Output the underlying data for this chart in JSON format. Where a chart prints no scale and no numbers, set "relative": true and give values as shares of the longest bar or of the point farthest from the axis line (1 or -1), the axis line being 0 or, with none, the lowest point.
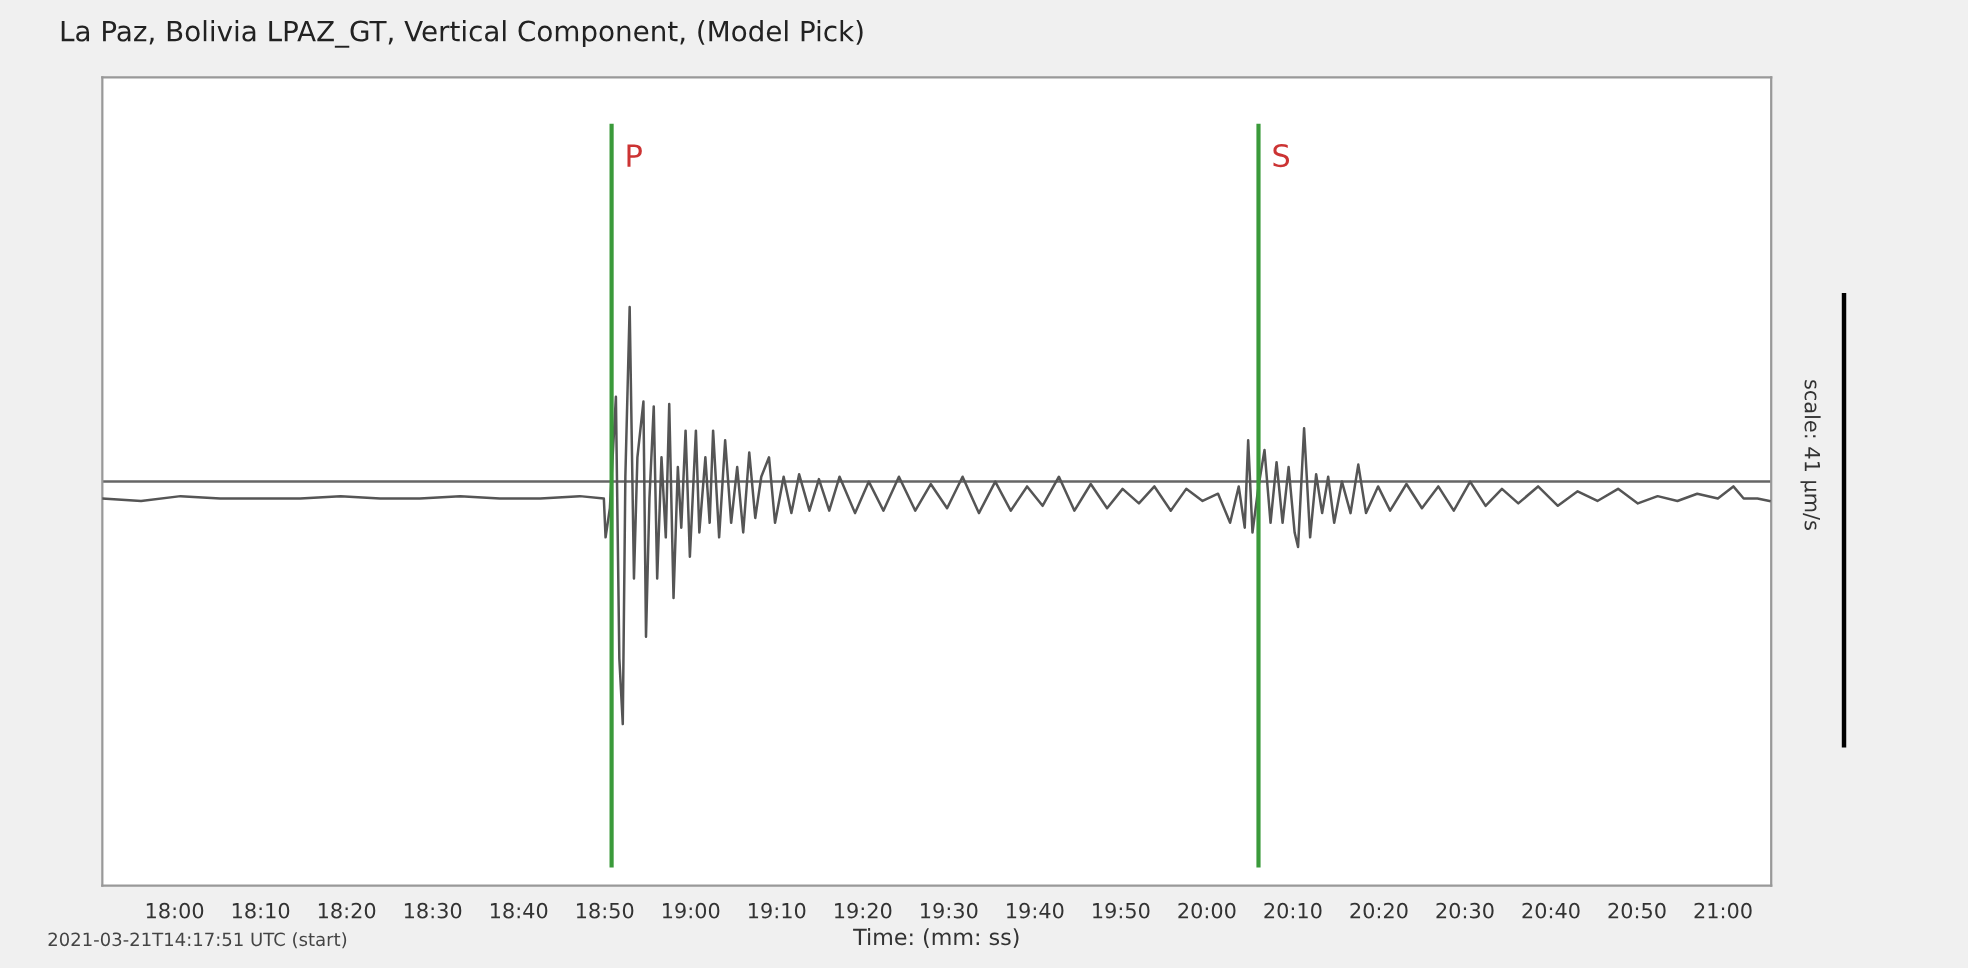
{
  "chart_data": {
    "type": "line",
    "title": "La Paz, Bolivia LPAZ_GT, Vertical Component, (Model Pick)",
    "xlabel": "Time: (mm: ss)",
    "relative": true,
    "tick_labels": "x",
    "grid": false,
    "marker": "none",
    "line_style": "solid",
    "annotations": [
      "2021-03-21T14:17:51 UTC (start)",
      "scale: 41 µm/s"
    ],
    "xlim": [
      1071.6,
      1265.6
    ],
    "xticks": [
      {
        "value": 1080,
        "label": "18:00"
      },
      {
        "value": 1090,
        "label": "18:10"
      },
      {
        "value": 1100,
        "label": "18:20"
      },
      {
        "value": 1110,
        "label": "18:30"
      },
      {
        "value": 1120,
        "label": "18:40"
      },
      {
        "value": 1130,
        "label": "18:50"
      },
      {
        "value": 1140,
        "label": "19:00"
      },
      {
        "value": 1150,
        "label": "19:10"
      },
      {
        "value": 1160,
        "label": "19:20"
      },
      {
        "value": 1170,
        "label": "19:30"
      },
      {
        "value": 1180,
        "label": "19:40"
      },
      {
        "value": 1190,
        "label": "19:50"
      },
      {
        "value": 1200,
        "label": "20:00"
      },
      {
        "value": 1210,
        "label": "20:10"
      },
      {
        "value": 1220,
        "label": "20:20"
      },
      {
        "value": 1230,
        "label": "20:30"
      },
      {
        "value": 1240,
        "label": "20:40"
      },
      {
        "value": 1250,
        "label": "20:50"
      },
      {
        "value": 1260,
        "label": "21:00"
      }
    ],
    "ref_lines": [
      {
        "axis": "y",
        "value": 0,
        "color": "#666666"
      },
      {
        "axis": "x",
        "value": 1130.8,
        "label": "P",
        "color": "#3a9a3a"
      },
      {
        "axis": "x",
        "value": 1206.0,
        "label": "S",
        "color": "#3a9a3a"
      }
    ],
    "series": [
      {
        "color": "#555555",
        "x": [
          1071.6,
          1076.1,
          1080.7,
          1085.3,
          1090.0,
          1094.6,
          1099.3,
          1103.9,
          1108.5,
          1113.2,
          1117.8,
          1122.5,
          1127.1,
          1129.9,
          1130.1,
          1130.6,
          1131.3,
          1131.7,
          1132.1,
          1132.4,
          1132.9,
          1133.4,
          1133.8,
          1134.5,
          1134.8,
          1135.2,
          1135.7,
          1136.1,
          1136.6,
          1137.1,
          1137.5,
          1138.0,
          1138.5,
          1138.9,
          1139.4,
          1139.9,
          1140.6,
          1141.0,
          1141.7,
          1142.2,
          1142.6,
          1143.3,
          1144.0,
          1144.7,
          1145.4,
          1146.1,
          1146.8,
          1147.5,
          1148.2,
          1149.1,
          1149.8,
          1150.8,
          1151.7,
          1152.6,
          1153.8,
          1154.9,
          1156.1,
          1157.3,
          1159.1,
          1160.7,
          1162.4,
          1164.2,
          1166.1,
          1167.9,
          1169.8,
          1171.6,
          1173.5,
          1175.4,
          1177.2,
          1179.1,
          1180.9,
          1182.8,
          1184.6,
          1186.5,
          1188.4,
          1190.2,
          1192.1,
          1193.9,
          1195.8,
          1197.6,
          1199.5,
          1201.3,
          1202.7,
          1203.7,
          1204.4,
          1204.8,
          1205.3,
          1206.0,
          1206.7,
          1207.4,
          1208.1,
          1208.8,
          1209.5,
          1210.2,
          1210.6,
          1211.3,
          1212.0,
          1212.7,
          1213.4,
          1214.1,
          1214.8,
          1215.7,
          1216.7,
          1217.6,
          1218.5,
          1219.9,
          1221.3,
          1223.2,
          1225.0,
          1226.9,
          1228.7,
          1230.6,
          1232.4,
          1234.3,
          1236.2,
          1238.5,
          1240.8,
          1243.1,
          1245.4,
          1247.8,
          1250.1,
          1252.4,
          1254.7,
          1257.0,
          1259.4,
          1261.2,
          1262.4,
          1264.0,
          1265.4
        ],
        "values": [
          -0.07,
          -0.08,
          -0.06,
          -0.07,
          -0.07,
          -0.07,
          -0.06,
          -0.07,
          -0.07,
          -0.06,
          -0.07,
          -0.07,
          -0.06,
          -0.07,
          -0.23,
          -0.11,
          0.35,
          -0.73,
          -1.0,
          0.02,
          0.72,
          -0.4,
          0.1,
          0.33,
          -0.64,
          -0.07,
          0.31,
          -0.4,
          0.1,
          -0.23,
          0.32,
          -0.48,
          0.06,
          -0.19,
          0.21,
          -0.31,
          0.21,
          -0.21,
          0.1,
          -0.17,
          0.21,
          -0.23,
          0.17,
          -0.17,
          0.06,
          -0.21,
          0.12,
          -0.15,
          0.02,
          0.1,
          -0.17,
          0.02,
          -0.13,
          0.03,
          -0.12,
          0.01,
          -0.12,
          0.02,
          -0.13,
          0.0,
          -0.12,
          0.02,
          -0.12,
          -0.01,
          -0.11,
          0.02,
          -0.13,
          0.0,
          -0.12,
          -0.02,
          -0.1,
          0.02,
          -0.12,
          -0.01,
          -0.11,
          -0.03,
          -0.09,
          -0.02,
          -0.12,
          -0.03,
          -0.08,
          -0.05,
          -0.17,
          -0.02,
          -0.19,
          0.17,
          -0.21,
          -0.02,
          0.13,
          -0.17,
          0.08,
          -0.17,
          0.06,
          -0.21,
          -0.27,
          0.22,
          -0.23,
          0.03,
          -0.13,
          0.02,
          -0.17,
          0.0,
          -0.13,
          0.07,
          -0.13,
          -0.02,
          -0.12,
          -0.01,
          -0.11,
          -0.02,
          -0.12,
          0.0,
          -0.1,
          -0.03,
          -0.09,
          -0.02,
          -0.1,
          -0.04,
          -0.08,
          -0.03,
          -0.09,
          -0.06,
          -0.08,
          -0.05,
          -0.07,
          -0.02,
          -0.07,
          -0.07,
          -0.08
        ]
      }
    ]
  }
}
